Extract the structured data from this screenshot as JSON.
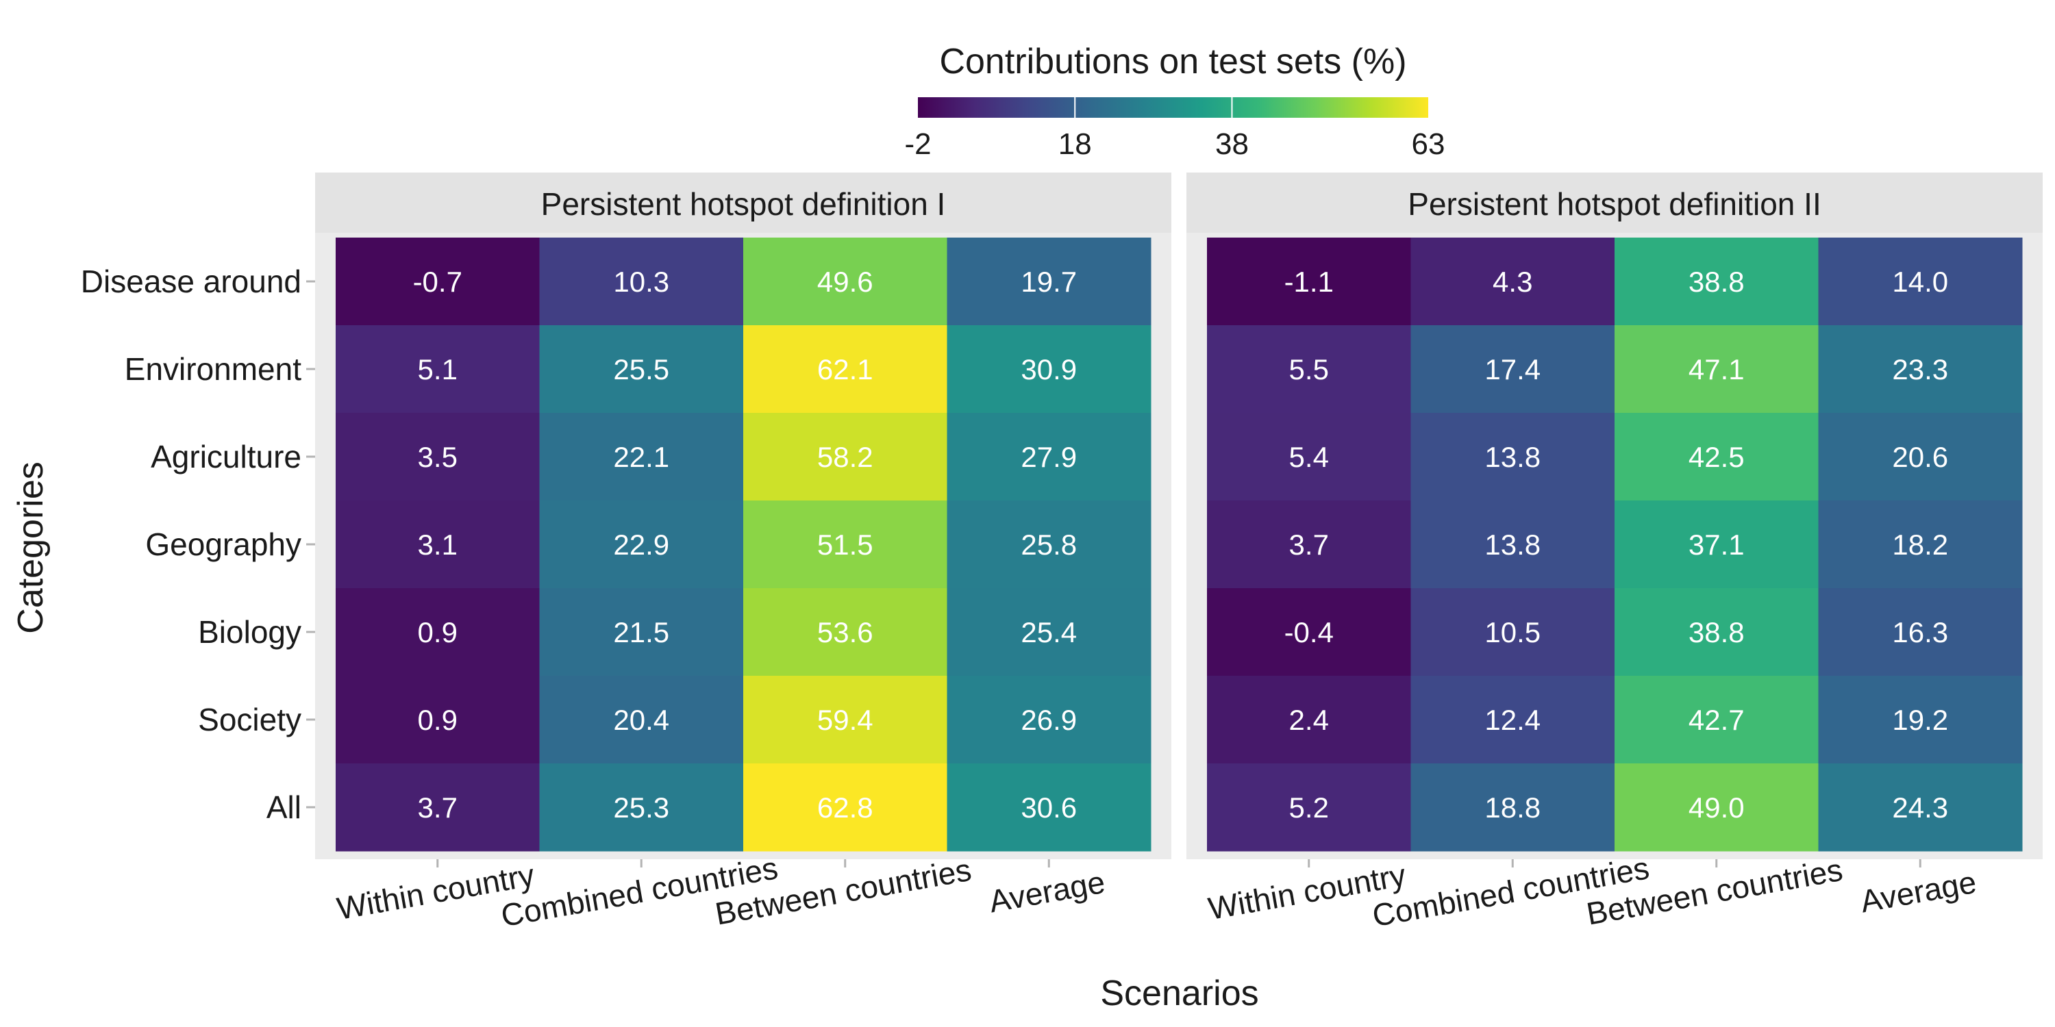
{
  "chart_data": {
    "type": "heatmap",
    "colorbar": {
      "title": "Contributions on test sets (%)",
      "ticks": [
        -2,
        18,
        38,
        63
      ],
      "range": [
        -2,
        63
      ],
      "colormap": "viridis"
    },
    "xlabel": "Scenarios",
    "ylabel": "Categories",
    "categories_x": [
      "Within country",
      "Combined countries",
      "Between countries",
      "Average"
    ],
    "categories_y": [
      "Disease around",
      "Environment",
      "Agriculture",
      "Geography",
      "Biology",
      "Society",
      "All"
    ],
    "panels": [
      {
        "title": "Persistent hotspot definition I",
        "values": [
          [
            -0.7,
            10.3,
            49.6,
            19.7
          ],
          [
            5.1,
            25.5,
            62.1,
            30.9
          ],
          [
            3.5,
            22.1,
            58.2,
            27.9
          ],
          [
            3.1,
            22.9,
            51.5,
            25.8
          ],
          [
            0.9,
            21.5,
            53.6,
            25.4
          ],
          [
            0.9,
            20.4,
            59.4,
            26.9
          ],
          [
            3.7,
            25.3,
            62.8,
            30.6
          ]
        ]
      },
      {
        "title": "Persistent hotspot definition II",
        "values": [
          [
            -1.1,
            4.3,
            38.8,
            14.0
          ],
          [
            5.5,
            17.4,
            47.1,
            23.3
          ],
          [
            5.4,
            13.8,
            42.5,
            20.6
          ],
          [
            3.7,
            13.8,
            37.1,
            18.2
          ],
          [
            -0.4,
            10.5,
            38.8,
            16.3
          ],
          [
            2.4,
            12.4,
            42.7,
            19.2
          ],
          [
            5.2,
            18.8,
            49.0,
            24.3
          ]
        ]
      }
    ]
  }
}
